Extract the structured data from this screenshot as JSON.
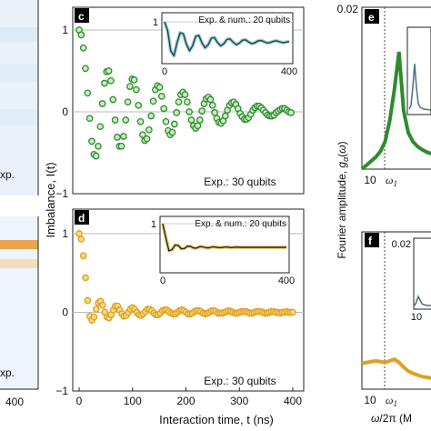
{
  "chart_data": [
    {
      "panel": "c",
      "type": "scatter",
      "xlabel": "Interaction time, t (ns)",
      "ylabel": "Imbalance, I(t)",
      "xlim": [
        0,
        400
      ],
      "ylim": [
        -1,
        1
      ],
      "xticks": [
        "0",
        "100",
        "200",
        "300",
        "400"
      ],
      "yticks": [
        "1",
        "0",
        "−1"
      ],
      "annotation": "Exp.: 30 qubits",
      "color": "#2e8b2e",
      "fill": "#c8ecc0",
      "series": [
        {
          "x": [
            0,
            4,
            8,
            12,
            16,
            20,
            24,
            28,
            32,
            36,
            40,
            44,
            48,
            52,
            56,
            60,
            64,
            68,
            72,
            76,
            80,
            84,
            88,
            92,
            96,
            100,
            104,
            108,
            112,
            116,
            120,
            124,
            128,
            132,
            136,
            140,
            144,
            148,
            152,
            156,
            160,
            164,
            168,
            172,
            176,
            180,
            184,
            188,
            192,
            196,
            200,
            204,
            208,
            212,
            216,
            220,
            224,
            228,
            232,
            236,
            240,
            244,
            248,
            252,
            256,
            260,
            264,
            268,
            272,
            276,
            280,
            284,
            288,
            292,
            296,
            300,
            304,
            308,
            312,
            316,
            320,
            324,
            328,
            332,
            336,
            340,
            344,
            348,
            352,
            356,
            360,
            364,
            368,
            372,
            376,
            380,
            384,
            388,
            392,
            396,
            400
          ],
          "y": [
            1.0,
            0.94,
            0.78,
            0.53,
            0.23,
            -0.08,
            -0.36,
            -0.52,
            -0.54,
            -0.42,
            -0.18,
            0.1,
            0.35,
            0.49,
            0.5,
            0.38,
            0.15,
            -0.1,
            -0.31,
            -0.42,
            -0.42,
            -0.3,
            -0.1,
            0.12,
            0.31,
            0.4,
            0.39,
            0.27,
            0.08,
            -0.12,
            -0.28,
            -0.35,
            -0.33,
            -0.22,
            -0.05,
            0.13,
            0.27,
            0.32,
            0.3,
            0.19,
            0.04,
            -0.12,
            -0.23,
            -0.28,
            -0.25,
            -0.15,
            -0.01,
            0.12,
            0.21,
            0.24,
            0.21,
            0.12,
            0.0,
            -0.1,
            -0.17,
            -0.2,
            -0.17,
            -0.1,
            0.01,
            0.1,
            0.16,
            0.18,
            0.15,
            0.08,
            -0.01,
            -0.08,
            -0.13,
            -0.14,
            -0.11,
            -0.05,
            0.02,
            0.08,
            0.11,
            0.12,
            0.09,
            0.04,
            -0.02,
            -0.06,
            -0.09,
            -0.09,
            -0.07,
            -0.03,
            0.02,
            0.05,
            0.07,
            0.07,
            0.05,
            0.02,
            -0.01,
            -0.04,
            -0.05,
            -0.05,
            -0.04,
            -0.01,
            0.01,
            0.03,
            0.04,
            0.04,
            0.02,
            0.0,
            -0.01
          ]
        }
      ],
      "inset": {
        "label": "Exp. & num.: 20 qubits",
        "xticks": [
          "0",
          "400"
        ],
        "ytick": "1",
        "xlim": [
          0,
          400
        ],
        "ylim": [
          -1,
          1
        ],
        "line_color": "#2b3a55",
        "band_color": "#9fd6d0",
        "x": [
          0,
          10,
          20,
          30,
          40,
          50,
          60,
          70,
          80,
          90,
          100,
          110,
          120,
          130,
          140,
          150,
          160,
          170,
          180,
          190,
          200,
          210,
          220,
          230,
          240,
          250,
          260,
          270,
          280,
          290,
          300,
          310,
          320,
          330,
          340,
          350,
          360,
          370,
          380,
          390,
          400
        ],
        "y": [
          1.0,
          0.55,
          -0.45,
          -0.7,
          -0.05,
          0.45,
          0.4,
          -0.12,
          -0.45,
          -0.2,
          0.28,
          0.32,
          -0.05,
          -0.3,
          -0.15,
          0.18,
          0.22,
          -0.03,
          -0.2,
          -0.1,
          0.12,
          0.15,
          -0.02,
          -0.14,
          -0.07,
          0.08,
          0.1,
          -0.01,
          -0.09,
          -0.05,
          0.05,
          0.07,
          0.0,
          -0.06,
          -0.03,
          0.03,
          0.05,
          0.0,
          -0.04,
          -0.02,
          0.02
        ]
      }
    },
    {
      "panel": "d",
      "type": "scatter",
      "xlabel": "Interaction time, t (ns)",
      "ylabel": "Imbalance, I(t)",
      "xlim": [
        0,
        400
      ],
      "ylim": [
        -1,
        1
      ],
      "xticks": [
        "0",
        "100",
        "200",
        "300",
        "400"
      ],
      "yticks": [
        "1",
        "0",
        "−1"
      ],
      "annotation": "Exp.: 30 qubits",
      "color": "#e0a020",
      "fill": "#f6d880",
      "series": [
        {
          "x": [
            0,
            4,
            8,
            12,
            16,
            20,
            24,
            28,
            32,
            36,
            40,
            44,
            48,
            52,
            56,
            60,
            64,
            68,
            72,
            76,
            80,
            84,
            88,
            92,
            96,
            100,
            104,
            108,
            112,
            116,
            120,
            124,
            128,
            132,
            136,
            140,
            144,
            148,
            152,
            156,
            160,
            164,
            168,
            172,
            176,
            180,
            184,
            188,
            192,
            196,
            200,
            204,
            208,
            212,
            216,
            220,
            224,
            228,
            232,
            236,
            240,
            244,
            248,
            252,
            256,
            260,
            264,
            268,
            272,
            276,
            280,
            284,
            288,
            292,
            296,
            300,
            304,
            308,
            312,
            316,
            320,
            324,
            328,
            332,
            336,
            340,
            344,
            348,
            352,
            356,
            360,
            364,
            368,
            372,
            376,
            380,
            384,
            388,
            392,
            396,
            400
          ],
          "y": [
            1.0,
            0.93,
            0.72,
            0.44,
            0.15,
            -0.05,
            -0.1,
            -0.06,
            0.04,
            0.12,
            0.14,
            0.09,
            0.0,
            -0.06,
            -0.07,
            -0.03,
            0.03,
            0.08,
            0.08,
            0.03,
            -0.02,
            -0.05,
            -0.04,
            0.0,
            0.04,
            0.06,
            0.04,
            0.0,
            -0.03,
            -0.04,
            -0.02,
            0.01,
            0.04,
            0.04,
            0.02,
            -0.01,
            -0.03,
            -0.03,
            -0.01,
            0.02,
            0.03,
            0.03,
            0.01,
            -0.01,
            -0.02,
            -0.02,
            0.0,
            0.02,
            0.03,
            0.02,
            0.0,
            -0.02,
            -0.02,
            -0.01,
            0.01,
            0.02,
            0.02,
            0.01,
            -0.01,
            -0.02,
            -0.01,
            0.0,
            0.02,
            0.02,
            0.01,
            -0.01,
            -0.01,
            -0.01,
            0.0,
            0.01,
            0.02,
            0.01,
            0.0,
            -0.01,
            -0.01,
            0.0,
            0.01,
            0.01,
            0.01,
            0.0,
            -0.01,
            -0.01,
            0.0,
            0.01,
            0.01,
            0.01,
            0.0,
            -0.01,
            -0.01,
            0.0,
            0.01,
            0.01,
            0.0,
            0.0,
            -0.01,
            0.0,
            0.0,
            0.01,
            0.0,
            0.0,
            0.0
          ]
        }
      ],
      "inset": {
        "label": "Exp. & num.: 20 qubits",
        "xticks": [
          "0",
          "400"
        ],
        "ytick": "1",
        "xlim": [
          0,
          400
        ],
        "ylim": [
          -1,
          1
        ],
        "line_color": "#222222",
        "band_color": "#f3d27a",
        "x": [
          0,
          10,
          20,
          30,
          40,
          50,
          60,
          70,
          80,
          90,
          100,
          110,
          120,
          130,
          140,
          150,
          160,
          170,
          180,
          190,
          200,
          210,
          220,
          230,
          240,
          250,
          260,
          270,
          280,
          290,
          300,
          310,
          320,
          330,
          340,
          350,
          360,
          370,
          380,
          390,
          400
        ],
        "y": [
          1.0,
          0.4,
          -0.15,
          -0.1,
          0.1,
          0.08,
          -0.06,
          -0.05,
          0.05,
          0.04,
          -0.03,
          -0.03,
          0.03,
          0.02,
          -0.02,
          -0.02,
          0.02,
          0.01,
          -0.01,
          -0.01,
          0.01,
          0.01,
          -0.01,
          0.0,
          0.01,
          0.0,
          0.0,
          0.0,
          0.0,
          0.0,
          0.0,
          0.0,
          0.0,
          0.0,
          0.0,
          0.0,
          0.0,
          0.0,
          0.0,
          0.0,
          0.0
        ]
      }
    },
    {
      "panel": "e",
      "type": "line",
      "ylabel": "Fourier amplitude, g_α(ω)",
      "yticks": [
        "0.02"
      ],
      "xticks": [
        "10",
        "ω1"
      ],
      "color": "#2e8b2e",
      "x": [
        5,
        6,
        7,
        8,
        9,
        10,
        11,
        12,
        13,
        14,
        15,
        16,
        17,
        18,
        19,
        20,
        21,
        22,
        23,
        24,
        25
      ],
      "y": [
        0.0,
        0.0005,
        0.001,
        0.0015,
        0.0022,
        0.0034,
        0.006,
        0.0098,
        0.0145,
        0.0072,
        0.0045,
        0.0034,
        0.0028,
        0.0024,
        0.0021,
        0.0019,
        0.0018,
        0.0017,
        0.0016,
        0.0015,
        0.0015
      ]
    },
    {
      "panel": "f",
      "type": "line",
      "xlabel": "ω/2π (M",
      "xticks": [
        "10",
        "ω1"
      ],
      "inset_ytick": "0.02",
      "inset_xtick": "10",
      "color": "#e0a020",
      "x": [
        5,
        6,
        7,
        8,
        9,
        10,
        11,
        12,
        13,
        14,
        15,
        16,
        17,
        18,
        19,
        20,
        21,
        22,
        23,
        24,
        25
      ],
      "y": [
        0.0033,
        0.0034,
        0.0035,
        0.0036,
        0.0035,
        0.0034,
        0.0036,
        0.0038,
        0.0034,
        0.0028,
        0.0023,
        0.002,
        0.0018,
        0.0016,
        0.0015,
        0.0014,
        0.0013,
        0.0012,
        0.0012,
        0.0011,
        0.0011
      ]
    }
  ],
  "left_strip": {
    "top_label": "xp.",
    "bottom_label": "xp.",
    "tick_label": "400"
  }
}
